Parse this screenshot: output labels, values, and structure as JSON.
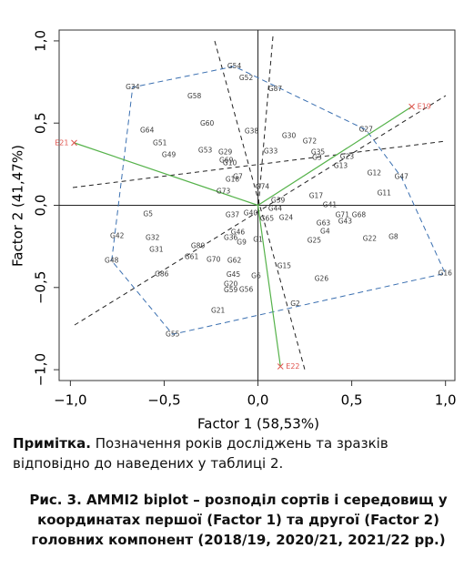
{
  "chart_data": {
    "type": "biplot",
    "x_label": "Factor 1 (58,53%)",
    "y_label": "Factor 2 (41,47%)",
    "xlim": [
      -1.06,
      1.05
    ],
    "ylim": [
      -1.066,
      1.066
    ],
    "xticks": [
      {
        "value": -1.0,
        "label": "−1,0"
      },
      {
        "value": -0.5,
        "label": "−0,5"
      },
      {
        "value": 0.0,
        "label": "0,0"
      },
      {
        "value": 0.5,
        "label": "0,5"
      },
      {
        "value": 1.0,
        "label": "1,0"
      }
    ],
    "yticks": [
      {
        "value": -1.0,
        "label": "−1,0"
      },
      {
        "value": -0.5,
        "label": "−0,5"
      },
      {
        "value": 0.0,
        "label": "0,0"
      },
      {
        "value": 0.5,
        "label": "0,5"
      },
      {
        "value": 1.0,
        "label": "1,0"
      }
    ],
    "genotypes": {
      "color": "#3a3a3a",
      "labels": [
        "G54",
        "G52",
        "G87",
        "G34",
        "G58",
        "G60",
        "G64",
        "G51",
        "G49",
        "G38",
        "G30",
        "G72",
        "G27",
        "G53",
        "G29",
        "G33",
        "G69",
        "G10",
        "G23",
        "G35",
        "G3",
        "G13",
        "G12",
        "G47",
        "G11",
        "G18",
        "G7",
        "G73",
        "G74",
        "G17",
        "G41",
        "G39",
        "G44",
        "G5",
        "G37",
        "G40",
        "G65",
        "G24",
        "G71",
        "G68",
        "G63",
        "G43",
        "G4",
        "G25",
        "G22",
        "G8",
        "G42",
        "G32",
        "G31",
        "G46",
        "G36",
        "G9",
        "G1",
        "G80",
        "G61",
        "G70",
        "G62",
        "G48",
        "G86",
        "G15",
        "G45",
        "G6",
        "G26",
        "G20",
        "G59",
        "G56",
        "G16",
        "G2",
        "G21",
        "G55"
      ],
      "x": [
        -0.126,
        -0.063,
        0.092,
        -0.668,
        -0.339,
        -0.271,
        -0.591,
        -0.523,
        -0.475,
        -0.034,
        0.165,
        0.276,
        0.576,
        -0.281,
        -0.174,
        0.068,
        -0.169,
        -0.15,
        0.475,
        0.32,
        0.315,
        0.441,
        0.62,
        0.765,
        0.673,
        -0.136,
        -0.107,
        -0.184,
        0.024,
        0.31,
        0.383,
        0.107,
        0.092,
        -0.586,
        -0.136,
        -0.039,
        0.048,
        0.15,
        0.45,
        0.538,
        0.349,
        0.465,
        0.358,
        0.3,
        0.596,
        0.722,
        -0.751,
        -0.562,
        -0.542,
        -0.107,
        -0.145,
        -0.087,
        0.0,
        -0.32,
        -0.354,
        -0.237,
        -0.126,
        -0.78,
        -0.513,
        0.14,
        -0.131,
        -0.01,
        0.339,
        -0.145,
        -0.145,
        -0.063,
        0.998,
        0.199,
        -0.213,
        -0.455
      ],
      "y": [
        0.845,
        0.773,
        0.707,
        0.718,
        0.663,
        0.497,
        0.453,
        0.376,
        0.304,
        0.448,
        0.42,
        0.387,
        0.459,
        0.331,
        0.32,
        0.326,
        0.271,
        0.254,
        0.293,
        0.32,
        0.287,
        0.238,
        0.193,
        0.171,
        0.072,
        0.155,
        0.171,
        0.083,
        0.11,
        0.055,
        0.0,
        0.028,
        -0.022,
        -0.055,
        -0.061,
        -0.05,
        -0.083,
        -0.077,
        -0.061,
        -0.061,
        -0.11,
        -0.099,
        -0.16,
        -0.215,
        -0.204,
        -0.193,
        -0.188,
        -0.199,
        -0.271,
        -0.166,
        -0.199,
        -0.227,
        -0.21,
        -0.249,
        -0.315,
        -0.331,
        -0.337,
        -0.337,
        -0.42,
        -0.37,
        -0.425,
        -0.431,
        -0.448,
        -0.481,
        -0.519,
        -0.514,
        -0.414,
        -0.602,
        -0.641,
        -0.785
      ]
    },
    "environments": {
      "color": "#e0554f",
      "vector_color": "#55b24a",
      "labels": [
        "E21",
        "E19",
        "E22"
      ],
      "x": [
        -0.98,
        0.82,
        0.12
      ],
      "y": [
        0.38,
        0.6,
        -0.98
      ]
    },
    "hull_color": "#3a6fb0"
  },
  "note": {
    "label": "Примітка.",
    "text": "Позначення років досліджень та зразків відповідно до наведених у таблиці 2."
  },
  "caption": "Рис. 3. AMMI2 biplot – розподіл сортів і середовищ у координатах першої (Factor 1) та другої (Factor 2) головних компонент (2018/19, 2020/21, 2021/22 рр.)"
}
